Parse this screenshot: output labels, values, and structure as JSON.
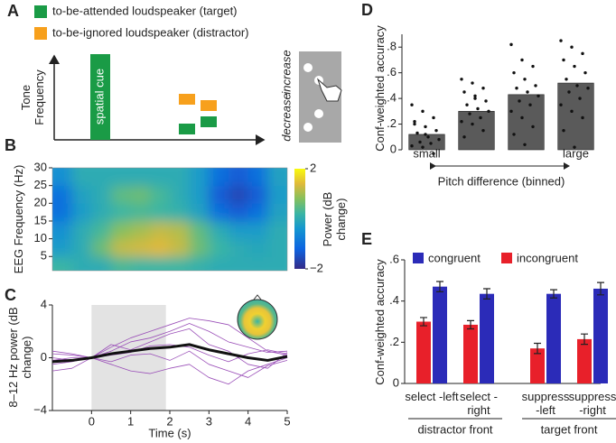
{
  "panel_labels": [
    "A",
    "B",
    "C",
    "D",
    "E"
  ],
  "panel_a": {
    "legend": [
      {
        "label": "to-be-attended loudspeaker (target)",
        "color": "#1a9b46"
      },
      {
        "label": "to-be-ignored loudspeaker (distractor)",
        "color": "#f7a01c"
      }
    ],
    "y_label": "Tone Frequency",
    "cue_label": "spatial cue",
    "increase": "increase",
    "decrease": "decrease"
  },
  "chart_data": [
    {
      "type": "heatmap",
      "y_label": "EEG Frequency (Hz)",
      "xlim": [
        -1,
        5
      ],
      "ylim": [
        1,
        30
      ],
      "yticks": [
        5,
        10,
        15,
        20,
        25,
        30
      ],
      "xbins": [
        -1,
        -0.5,
        0,
        0.5,
        1,
        1.5,
        2,
        2.5,
        3,
        3.5,
        4,
        4.5,
        5
      ],
      "ybins": [
        1,
        5,
        10,
        15,
        20,
        25,
        30
      ],
      "z": [
        [
          0.2,
          0,
          0,
          0.3,
          0.2,
          0.2,
          0.2,
          0.1,
          0,
          0,
          0,
          0
        ],
        [
          -0.3,
          0,
          0.6,
          1.2,
          1.3,
          1.4,
          1.2,
          0.6,
          0.2,
          0,
          -0.1,
          0
        ],
        [
          -0.5,
          0,
          0.3,
          0.8,
          1.0,
          1.2,
          1.1,
          0.5,
          0,
          -0.3,
          -0.3,
          0
        ],
        [
          -1,
          -0.3,
          0,
          0.2,
          0.3,
          0.2,
          0.1,
          -0.2,
          -1,
          -1.3,
          -1,
          -0.2
        ],
        [
          -1,
          -0.2,
          0,
          0.5,
          0.6,
          0.3,
          0,
          -0.3,
          -1.3,
          -1.6,
          -1.3,
          -0.3
        ],
        [
          -0.5,
          0,
          0,
          0,
          0,
          0,
          0,
          -0.3,
          -1,
          -1.3,
          -1,
          -0.2
        ]
      ],
      "zlim": [
        -2,
        2
      ],
      "zticks": [
        2,
        {
          "value": -2,
          "label": "−2"
        }
      ],
      "z_label": "Power (dB change)"
    },
    {
      "type": "line",
      "x_label": "Time (s)",
      "y_label": "8–12 Hz power (dB change)",
      "xlim": [
        -1,
        5
      ],
      "ylim": [
        -4,
        4
      ],
      "xticks": [
        0,
        1,
        2,
        3,
        4,
        5
      ],
      "yticks": [
        4,
        0,
        {
          "value": -4,
          "label": "−4"
        }
      ],
      "shaded_region": [
        0,
        1.9
      ],
      "x": [
        -1,
        -0.5,
        0,
        0.5,
        1,
        1.5,
        2,
        2.5,
        3,
        3.5,
        4,
        4.5,
        5
      ],
      "series": [
        {
          "color": "#9a4fb8",
          "values": [
            -0.5,
            -0.3,
            0,
            0.8,
            1.5,
            2,
            2.5,
            3,
            2.8,
            2.5,
            1.5,
            0.5,
            0.2
          ]
        },
        {
          "color": "#9a4fb8",
          "values": [
            0.3,
            0.2,
            0,
            -0.5,
            -1,
            -1.2,
            -0.8,
            -0.5,
            -1.5,
            -2,
            -1,
            -0.5,
            0
          ]
        },
        {
          "color": "#9a4fb8",
          "values": [
            -1,
            -0.8,
            0,
            1,
            0.6,
            1.2,
            1.8,
            2.2,
            1,
            0.5,
            -0.5,
            -0.8,
            0.4
          ]
        },
        {
          "color": "#9a4fb8",
          "values": [
            0.5,
            0.3,
            0,
            0.2,
            0.4,
            0.9,
            1,
            0.8,
            0.2,
            -0.3,
            0.3,
            0.6,
            0.3
          ]
        },
        {
          "color": "#9a4fb8",
          "values": [
            -0.2,
            0,
            0,
            -0.3,
            0.2,
            0.3,
            -0.2,
            0.5,
            -0.5,
            -1,
            -1.5,
            -0.6,
            -0.2
          ]
        },
        {
          "color": "#9a4fb8",
          "values": [
            0,
            -0.2,
            0,
            0.5,
            1.2,
            1.5,
            2,
            2.6,
            2,
            1.2,
            0.8,
            0.4,
            0.5
          ]
        },
        {
          "color": "#111111",
          "values": [
            -0.3,
            -0.2,
            0,
            0.3,
            0.5,
            0.7,
            0.8,
            1.0,
            0.6,
            0.3,
            0,
            -0.2,
            0.1
          ]
        }
      ]
    },
    {
      "type": "bar_scatter",
      "x_label": "Pitch difference (binned)",
      "y_label": "Conf-weighted accuracy",
      "categories": [
        "small",
        null,
        null,
        "large"
      ],
      "values": [
        0.12,
        0.3,
        0.43,
        0.52
      ],
      "color": "#5a5a5a",
      "ylim": [
        0,
        0.9
      ],
      "yticks": [
        0,
        {
          "value": 0.2,
          "label": ".2"
        },
        {
          "value": 0.4,
          "label": ".4"
        },
        {
          "value": 0.6,
          "label": ".6"
        },
        {
          "value": 0.8,
          "label": ".8"
        }
      ],
      "points": [
        [
          0.35,
          0.3,
          0.25,
          0.22,
          0.18,
          0.15,
          0.13,
          0.1,
          0.08,
          0.06,
          0.05,
          0.03,
          0.02,
          -0.03,
          0.2,
          0.12
        ],
        [
          0.55,
          0.52,
          0.48,
          0.45,
          0.4,
          0.38,
          0.35,
          0.32,
          0.3,
          0.28,
          0.25,
          0.22,
          0.2,
          0.15,
          0.1,
          0.42
        ],
        [
          0.82,
          0.7,
          0.65,
          0.6,
          0.55,
          0.5,
          0.48,
          0.45,
          0.42,
          0.38,
          0.35,
          0.3,
          0.25,
          0.18,
          0.12,
          0.04
        ],
        [
          0.85,
          0.8,
          0.75,
          0.7,
          0.65,
          0.6,
          0.55,
          0.5,
          0.48,
          0.45,
          0.4,
          0.35,
          0.3,
          0.25,
          0.15,
          0.02
        ]
      ]
    },
    {
      "type": "grouped_bar",
      "y_label": "Conf-weighted accuracy",
      "categories": [
        "select -left",
        "select -right",
        "suppress -left",
        "suppress -right"
      ],
      "groups": [
        "distractor front",
        "target front"
      ],
      "ylim": [
        0,
        0.6
      ],
      "yticks": [
        0,
        {
          "value": 0.2,
          "label": ".2"
        },
        {
          "value": 0.4,
          "label": ".4"
        },
        {
          "value": 0.6,
          "label": ".6"
        }
      ],
      "series": [
        {
          "name": "congruent",
          "color": "#2b2bb8",
          "values": [
            0.47,
            0.435,
            0.435,
            0.46
          ],
          "errors": [
            0.025,
            0.025,
            0.02,
            0.03
          ]
        },
        {
          "name": "incongruent",
          "color": "#e8202a",
          "values": [
            0.3,
            0.285,
            0.17,
            0.215
          ],
          "errors": [
            0.02,
            0.02,
            0.025,
            0.025
          ]
        }
      ]
    }
  ]
}
